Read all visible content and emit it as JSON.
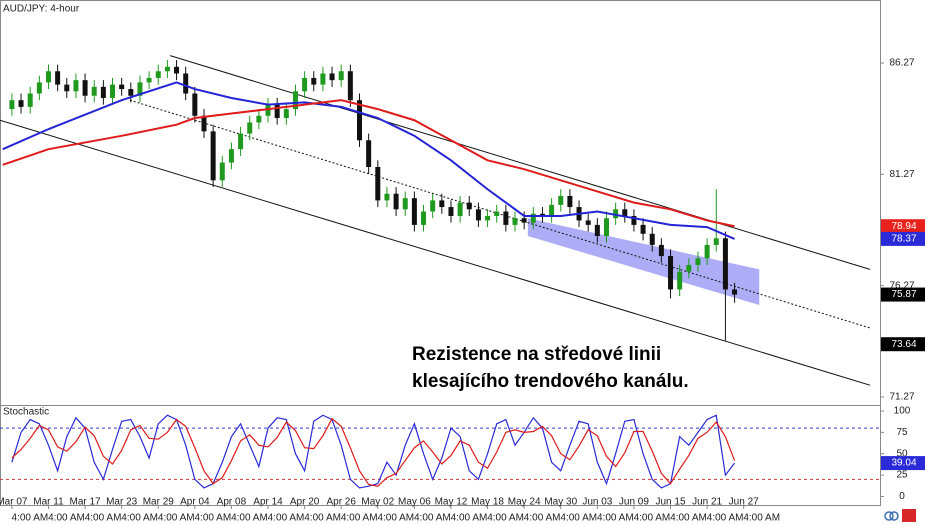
{
  "chart_data": [
    {
      "type": "candlestick",
      "title": "AUD/JPY: 4-hour",
      "xlim": [
        -1.3,
        94.9
      ],
      "ylim": [
        70.91,
        89.1
      ],
      "yticks": [
        86.27,
        81.27,
        76.27,
        71.27
      ],
      "xticks": [
        {
          "value": 0,
          "label": "Mar 07",
          "time": "4:00 AM"
        },
        {
          "value": 4,
          "label": "Mar 11",
          "time": "4:00 AM"
        },
        {
          "value": 8,
          "label": "Mar 17",
          "time": "4:00 AM"
        },
        {
          "value": 12,
          "label": "Mar 23",
          "time": "4:00 AM"
        },
        {
          "value": 16,
          "label": "Mar 29",
          "time": "4:00 AM"
        },
        {
          "value": 20,
          "label": "Apr 04",
          "time": "4:00 AM"
        },
        {
          "value": 24,
          "label": "Apr 08",
          "time": "4:00 AM"
        },
        {
          "value": 28,
          "label": "Apr 14",
          "time": "4:00 AM"
        },
        {
          "value": 32,
          "label": "Apr 20",
          "time": "4:00 AM"
        },
        {
          "value": 36,
          "label": "Apr 26",
          "time": "4:00 AM"
        },
        {
          "value": 40,
          "label": "May 02",
          "time": "4:00 AM"
        },
        {
          "value": 44,
          "label": "May 06",
          "time": "4:00 AM"
        },
        {
          "value": 48,
          "label": "May 12",
          "time": "4:00 AM"
        },
        {
          "value": 52,
          "label": "May 18",
          "time": "4:00 AM"
        },
        {
          "value": 56,
          "label": "May 24",
          "time": "4:00 AM"
        },
        {
          "value": 60,
          "label": "May 30",
          "time": "4:00 AM"
        },
        {
          "value": 64,
          "label": "Jun 03",
          "time": "4:00 AM"
        },
        {
          "value": 68,
          "label": "Jun 09",
          "time": "4:00 AM"
        },
        {
          "value": 72,
          "label": "Jun 15",
          "time": "4:00 AM"
        },
        {
          "value": 76,
          "label": "Jun 21",
          "time": "4:00 AM"
        },
        {
          "value": 80,
          "label": "Jun 27",
          "time": "4:00 AM"
        }
      ],
      "up_color": "#1f9a1f",
      "down_color": "#111111",
      "candles": {
        "open": [
          84.2,
          84.6,
          84.3,
          84.9,
          85.4,
          85.9,
          85.3,
          85.0,
          85.5,
          84.8,
          85.2,
          84.7,
          85.3,
          85.1,
          84.8,
          85.4,
          85.6,
          85.9,
          86.1,
          85.8,
          84.9,
          83.9,
          83.2,
          81.0,
          81.8,
          82.4,
          83.1,
          83.6,
          83.9,
          84.4,
          83.8,
          84.2,
          85.0,
          85.6,
          85.3,
          85.8,
          85.5,
          85.9,
          84.6,
          82.8,
          81.6,
          80.1,
          80.4,
          79.7,
          80.2,
          79.0,
          79.6,
          80.1,
          79.8,
          79.4,
          80.0,
          79.7,
          79.2,
          79.4,
          79.6,
          79.0,
          79.3,
          79.1,
          79.5,
          79.4,
          79.9,
          80.3,
          79.8,
          79.2,
          79.0,
          78.5,
          79.3,
          79.7,
          79.4,
          79.0,
          78.6,
          78.1,
          77.6,
          76.1,
          76.9,
          77.2,
          77.5,
          78.1,
          78.4,
          76.1
        ],
        "high": [
          84.9,
          84.9,
          85.2,
          85.7,
          86.2,
          86.2,
          85.6,
          85.8,
          85.8,
          85.5,
          85.5,
          85.6,
          85.6,
          85.4,
          85.7,
          85.9,
          86.2,
          86.4,
          86.4,
          86.1,
          85.2,
          84.2,
          83.5,
          82.1,
          82.7,
          83.4,
          83.9,
          84.2,
          84.7,
          84.7,
          84.5,
          85.3,
          85.9,
          85.9,
          86.1,
          86.1,
          86.2,
          86.2,
          84.9,
          83.1,
          81.9,
          80.7,
          80.7,
          80.5,
          80.5,
          79.9,
          80.4,
          80.4,
          80.1,
          80.3,
          80.3,
          80.0,
          79.7,
          79.9,
          79.9,
          79.6,
          79.6,
          79.8,
          79.8,
          80.2,
          80.6,
          80.6,
          80.1,
          79.5,
          79.3,
          79.6,
          80.0,
          80.0,
          79.7,
          79.3,
          78.9,
          78.4,
          77.9,
          77.2,
          77.5,
          77.8,
          78.4,
          80.6,
          78.7,
          76.4
        ],
        "low": [
          83.9,
          84.0,
          84.0,
          84.6,
          85.1,
          85.0,
          84.7,
          84.7,
          84.5,
          84.5,
          84.4,
          84.4,
          84.8,
          84.5,
          84.5,
          85.1,
          85.3,
          85.6,
          85.5,
          84.6,
          83.6,
          82.9,
          80.7,
          80.7,
          81.5,
          82.1,
          82.8,
          83.3,
          83.6,
          83.5,
          83.5,
          83.9,
          84.7,
          85.0,
          85.0,
          85.2,
          85.2,
          84.3,
          82.5,
          81.3,
          79.8,
          79.8,
          79.4,
          79.4,
          78.7,
          78.7,
          79.3,
          79.5,
          79.1,
          79.1,
          79.4,
          78.9,
          78.9,
          79.1,
          78.7,
          78.7,
          78.8,
          78.8,
          79.1,
          79.1,
          79.6,
          79.5,
          78.9,
          78.7,
          78.2,
          78.2,
          79.0,
          79.1,
          78.7,
          78.3,
          77.8,
          77.3,
          75.7,
          75.8,
          76.6,
          76.9,
          77.2,
          77.8,
          73.8,
          75.5
        ],
        "close": [
          84.6,
          84.3,
          84.9,
          85.4,
          85.9,
          85.3,
          85.0,
          85.5,
          84.8,
          85.2,
          84.7,
          85.3,
          85.1,
          84.8,
          85.4,
          85.6,
          85.9,
          86.1,
          85.8,
          84.9,
          83.9,
          83.2,
          81.0,
          81.8,
          82.4,
          83.1,
          83.6,
          83.9,
          84.4,
          83.8,
          84.2,
          85.0,
          85.6,
          85.3,
          85.8,
          85.5,
          85.9,
          84.6,
          82.8,
          81.6,
          80.1,
          80.4,
          79.7,
          80.2,
          79.0,
          79.6,
          80.1,
          79.8,
          79.4,
          80.0,
          79.7,
          79.2,
          79.4,
          79.6,
          79.0,
          79.3,
          79.1,
          79.5,
          79.4,
          79.9,
          80.3,
          79.8,
          79.2,
          79.0,
          78.5,
          79.3,
          79.7,
          79.4,
          79.0,
          78.6,
          78.1,
          77.6,
          76.1,
          76.9,
          77.2,
          77.5,
          78.1,
          78.4,
          76.1,
          75.87
        ]
      },
      "series": [
        {
          "color": "#2424d6",
          "x": [
            -1,
            4,
            12,
            18,
            20,
            24,
            28,
            32,
            36,
            40,
            44,
            48,
            52,
            56,
            60,
            64,
            68,
            72,
            76,
            79
          ],
          "values": [
            82.4,
            83.3,
            84.6,
            85.4,
            85.1,
            84.7,
            84.4,
            84.5,
            84.3,
            83.8,
            83.0,
            81.9,
            80.6,
            79.4,
            79.4,
            79.6,
            79.3,
            79.0,
            78.9,
            78.37
          ]
        },
        {
          "color": "#e01b1b",
          "x": [
            -1,
            4,
            12,
            18,
            20,
            24,
            28,
            32,
            36,
            40,
            44,
            48,
            52,
            56,
            60,
            64,
            68,
            72,
            76,
            79
          ],
          "values": [
            81.7,
            82.4,
            83.0,
            83.5,
            83.8,
            84.0,
            84.2,
            84.4,
            84.6,
            84.2,
            83.7,
            82.8,
            81.9,
            81.5,
            81.0,
            80.5,
            80.0,
            79.7,
            79.2,
            78.94
          ]
        }
      ],
      "trendlines": [
        {
          "x": [
            17.3,
            93.8
          ],
          "values": [
            86.6,
            77.0
          ],
          "style": "solid"
        },
        {
          "x": [
            12.9,
            93.8
          ],
          "values": [
            84.6,
            74.37
          ],
          "style": "dotted"
        },
        {
          "x": [
            -1.3,
            93.8
          ],
          "values": [
            83.7,
            71.8
          ],
          "style": "solid"
        }
      ],
      "band": {
        "x": [
          56.4,
          81.7
        ],
        "upper": [
          79.3,
          77.0
        ],
        "lower": [
          78.5,
          75.4
        ],
        "color": "#7f7ff2"
      },
      "price_labels": [
        {
          "value": 78.94,
          "color": "#e8211c"
        },
        {
          "value": 78.37,
          "color": "#2a2ad8"
        },
        {
          "value": 75.87,
          "color": "#000000"
        },
        {
          "value": 73.64,
          "color": "#000000"
        }
      ],
      "annotation": [
        "Rezistence na středové linii",
        "klesajícího trendového kanálu."
      ]
    },
    {
      "type": "line",
      "title": "Stochastic",
      "xlim": [
        -1.3,
        94.9
      ],
      "ylim": [
        -10,
        107
      ],
      "yticks": [
        100,
        75,
        50,
        25,
        0
      ],
      "levels": [
        {
          "value": 80,
          "color": "#3a3ad0"
        },
        {
          "value": 20,
          "color": "#d03a3a"
        }
      ],
      "series": [
        {
          "color": "#2a2ad8",
          "values": [
            40,
            75,
            90,
            85,
            60,
            30,
            70,
            92,
            80,
            40,
            20,
            55,
            88,
            90,
            70,
            45,
            85,
            95,
            90,
            60,
            20,
            10,
            15,
            40,
            70,
            85,
            60,
            35,
            80,
            92,
            90,
            50,
            30,
            88,
            95,
            90,
            60,
            20,
            10,
            12,
            15,
            40,
            25,
            60,
            85,
            50,
            20,
            45,
            80,
            70,
            30,
            20,
            50,
            85,
            90,
            60,
            75,
            92,
            80,
            40,
            30,
            60,
            88,
            85,
            40,
            15,
            50,
            88,
            90,
            50,
            20,
            10,
            15,
            70,
            60,
            75,
            90,
            95,
            25,
            39.04
          ]
        },
        {
          "color": "#e01b1b",
          "values": [
            45,
            55,
            68,
            83,
            78,
            58,
            53,
            64,
            81,
            71,
            47,
            38,
            54,
            78,
            83,
            68,
            67,
            75,
            90,
            82,
            57,
            30,
            15,
            22,
            42,
            65,
            72,
            60,
            58,
            69,
            87,
            77,
            57,
            56,
            71,
            91,
            82,
            57,
            30,
            14,
            12,
            22,
            27,
            42,
            57,
            65,
            52,
            38,
            48,
            65,
            60,
            40,
            33,
            52,
            75,
            78,
            75,
            76,
            82,
            71,
            50,
            43,
            59,
            78,
            71,
            47,
            35,
            51,
            76,
            76,
            53,
            27,
            15,
            32,
            48,
            68,
            75,
            87,
            70,
            42
          ]
        }
      ],
      "last_label": {
        "value": 39.04,
        "color": "#2a2ad8"
      }
    }
  ]
}
